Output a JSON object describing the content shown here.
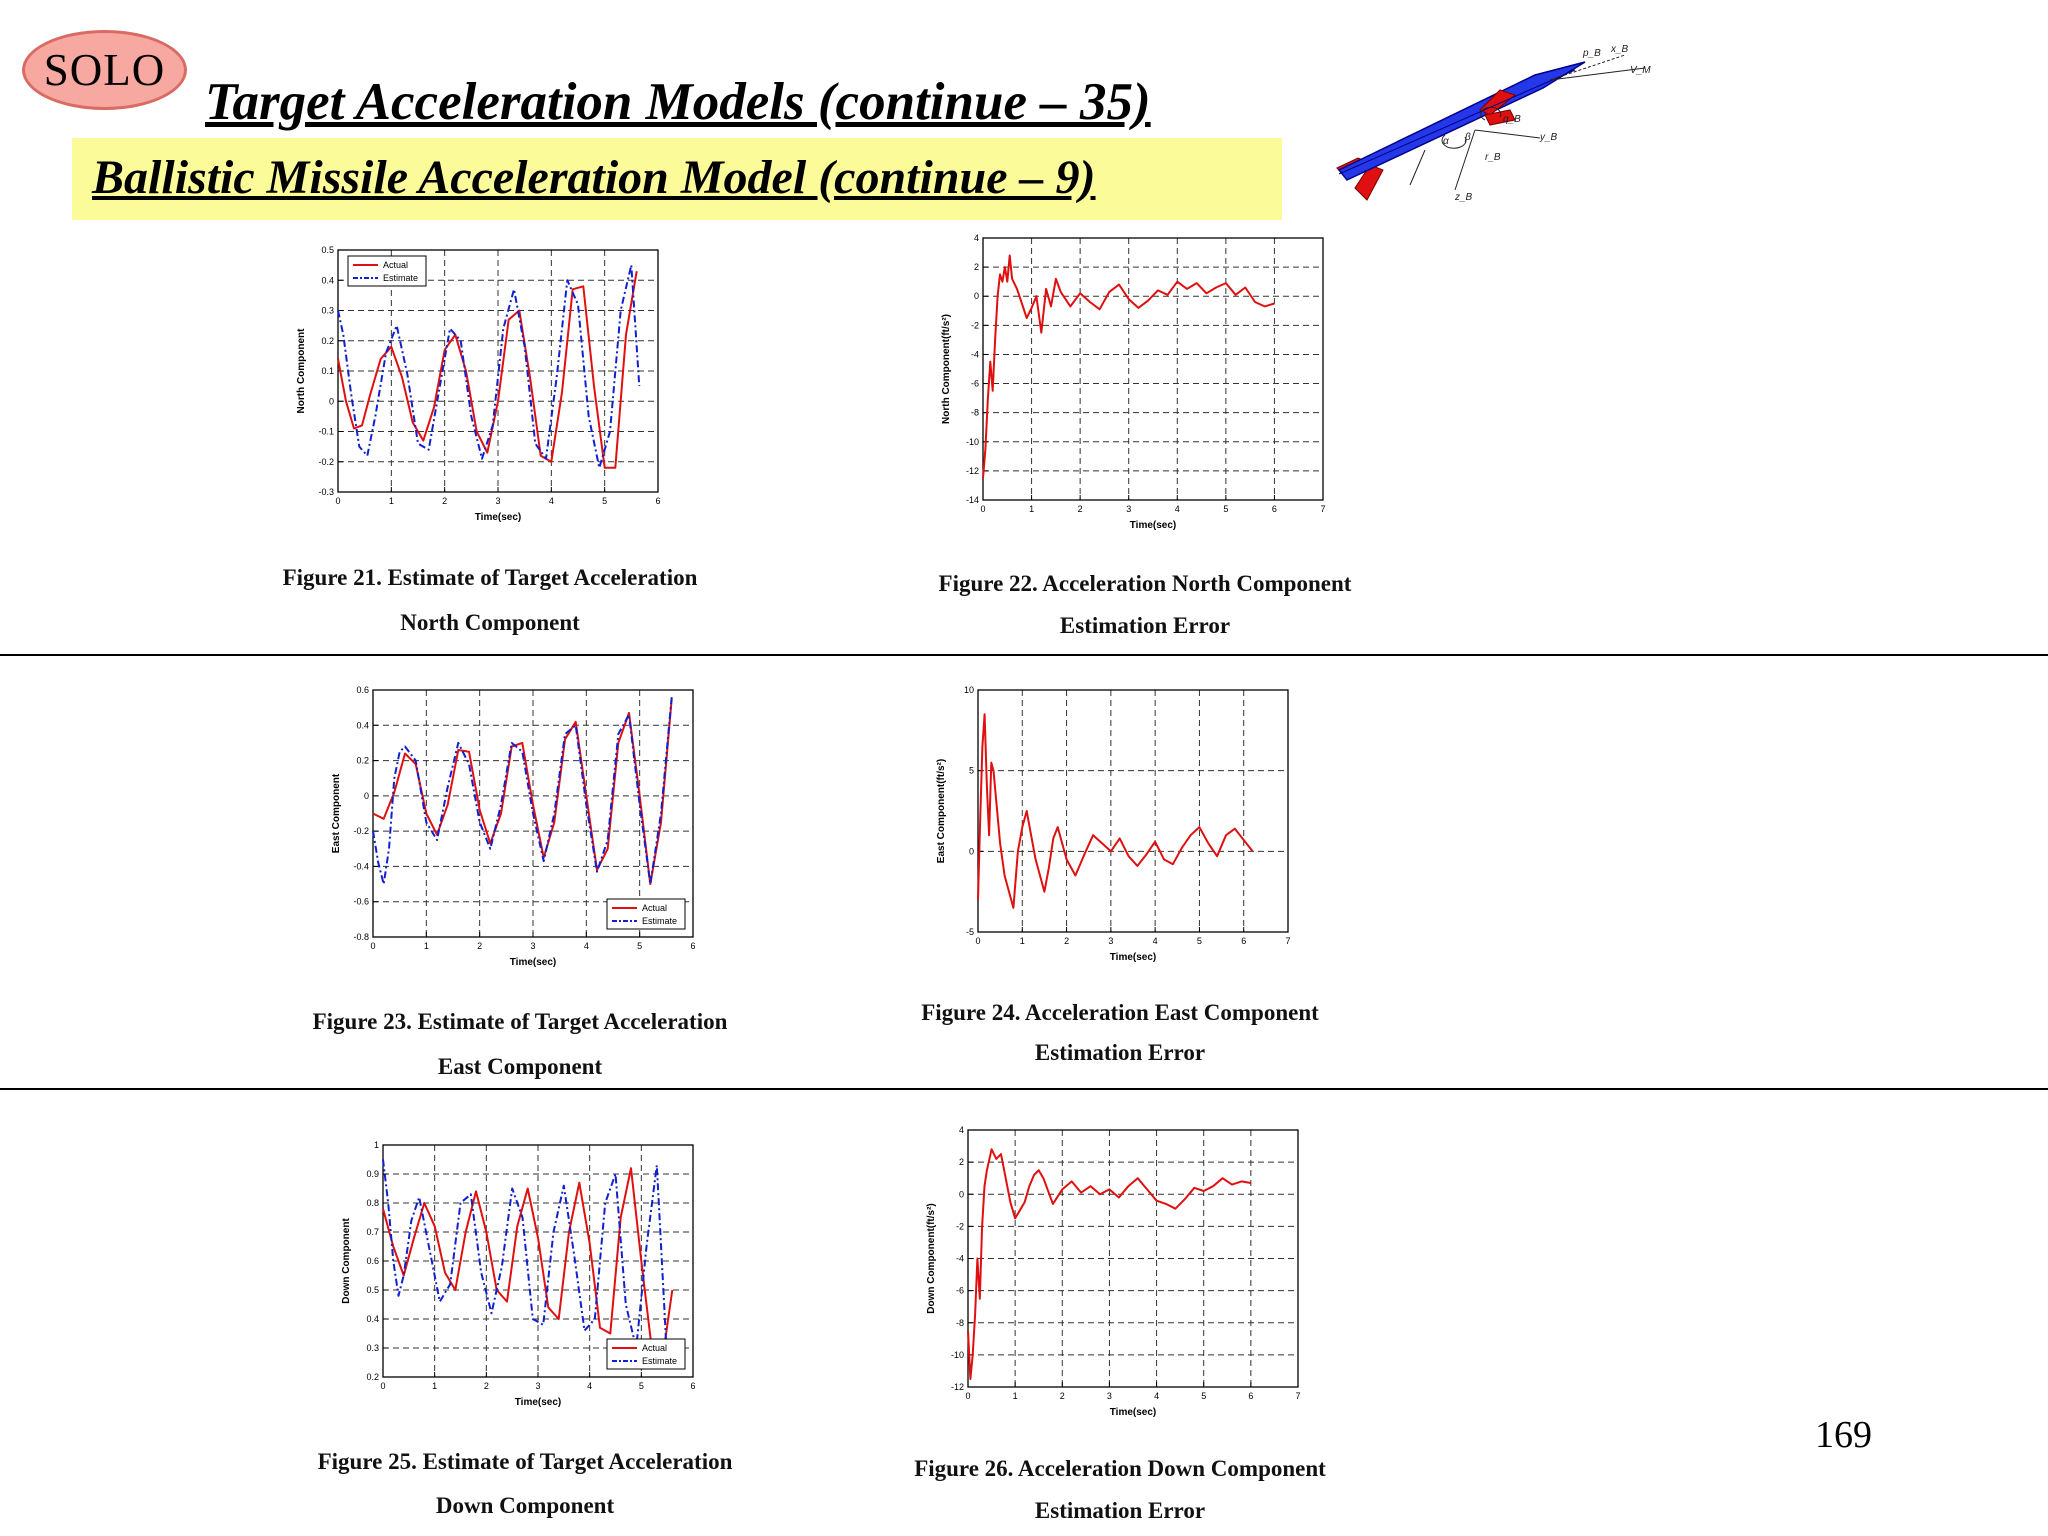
{
  "header": {
    "badge": "SOLO",
    "title": "Target Acceleration Models (continue – 35)",
    "subtitle": "Ballistic Missile Acceleration Model (continue – 9)"
  },
  "missile_labels": [
    "p_B",
    "x_B",
    "V_M",
    "q_B",
    "α",
    "β",
    "y_B",
    "r_B",
    "z_B"
  ],
  "colors": {
    "actual": "#e01010",
    "estimate": "#1020d0",
    "subtitle_bg": "#fbfb9a",
    "badge": "#f7a8a0"
  },
  "page_number": "169",
  "figures": [
    {
      "caption": [
        "Figure 21. Estimate of Target Acceleration",
        "North Component"
      ]
    },
    {
      "caption": [
        "Figure 22. Acceleration North Component",
        "Estimation Error"
      ]
    },
    {
      "caption": [
        "Figure 23. Estimate of Target Acceleration",
        "East Component"
      ]
    },
    {
      "caption": [
        "Figure 24. Acceleration East Component",
        "Estimation Error"
      ]
    },
    {
      "caption": [
        "Figure 25. Estimate of Target Acceleration",
        "Down Component"
      ]
    },
    {
      "caption": [
        "Figure 26. Acceleration Down Component",
        "Estimation Error"
      ]
    }
  ],
  "chart_data": [
    {
      "id": "fig21",
      "type": "line",
      "xlabel": "Time(sec)",
      "ylabel": "North Component",
      "xlim": [
        0,
        6
      ],
      "ylim": [
        -0.3,
        0.5
      ],
      "xticks": [
        0,
        1,
        2,
        3,
        4,
        5,
        6
      ],
      "yticks": [
        -0.3,
        -0.2,
        -0.1,
        0,
        0.1,
        0.2,
        0.3,
        0.4,
        0.5
      ],
      "legend": [
        "Actual",
        "Estimate"
      ],
      "legend_position": "top-left",
      "grid": true,
      "series": [
        {
          "name": "Actual",
          "color": "#e01010",
          "style": "solid",
          "x": [
            0.0,
            0.15,
            0.3,
            0.45,
            0.6,
            0.8,
            1.0,
            1.2,
            1.4,
            1.6,
            1.8,
            2.0,
            2.2,
            2.4,
            2.6,
            2.8,
            3.0,
            3.2,
            3.4,
            3.6,
            3.8,
            4.0,
            4.2,
            4.4,
            4.6,
            4.8,
            5.0,
            5.2,
            5.4,
            5.6
          ],
          "y": [
            0.14,
            0.0,
            -0.09,
            -0.08,
            0.02,
            0.14,
            0.18,
            0.08,
            -0.07,
            -0.13,
            -0.02,
            0.17,
            0.22,
            0.1,
            -0.1,
            -0.17,
            0.0,
            0.27,
            0.3,
            0.08,
            -0.18,
            -0.2,
            0.03,
            0.37,
            0.38,
            0.05,
            -0.22,
            -0.22,
            0.22,
            0.43
          ]
        },
        {
          "name": "Estimate",
          "color": "#1020d0",
          "style": "dashdot",
          "x": [
            0.0,
            0.1,
            0.25,
            0.4,
            0.55,
            0.7,
            0.9,
            1.1,
            1.3,
            1.5,
            1.7,
            1.9,
            2.1,
            2.3,
            2.5,
            2.7,
            2.9,
            3.1,
            3.3,
            3.5,
            3.7,
            3.9,
            4.1,
            4.3,
            4.5,
            4.7,
            4.9,
            5.1,
            5.3,
            5.5,
            5.65
          ],
          "y": [
            0.3,
            0.22,
            0.02,
            -0.15,
            -0.18,
            -0.05,
            0.16,
            0.25,
            0.09,
            -0.14,
            -0.16,
            0.04,
            0.24,
            0.2,
            -0.05,
            -0.19,
            -0.08,
            0.24,
            0.37,
            0.18,
            -0.14,
            -0.19,
            0.08,
            0.4,
            0.32,
            -0.05,
            -0.22,
            -0.1,
            0.3,
            0.45,
            0.05
          ]
        }
      ]
    },
    {
      "id": "fig22",
      "type": "line",
      "xlabel": "Time(sec)",
      "ylabel": "North Component(ft/s²)",
      "xlim": [
        0,
        7
      ],
      "ylim": [
        -14,
        4
      ],
      "xticks": [
        0,
        1,
        2,
        3,
        4,
        5,
        6,
        7
      ],
      "yticks": [
        -14,
        -12,
        -10,
        -8,
        -6,
        -4,
        -2,
        0,
        2,
        4
      ],
      "grid": true,
      "series": [
        {
          "name": "",
          "color": "#e01010",
          "style": "solid",
          "x": [
            0.0,
            0.05,
            0.1,
            0.15,
            0.2,
            0.25,
            0.3,
            0.35,
            0.4,
            0.45,
            0.5,
            0.55,
            0.6,
            0.7,
            0.8,
            0.9,
            1.0,
            1.1,
            1.2,
            1.3,
            1.4,
            1.5,
            1.6,
            1.8,
            2.0,
            2.2,
            2.4,
            2.6,
            2.8,
            3.0,
            3.2,
            3.4,
            3.6,
            3.8,
            4.0,
            4.2,
            4.4,
            4.6,
            4.8,
            5.0,
            5.2,
            5.4,
            5.6,
            5.8,
            6.0
          ],
          "y": [
            -12.5,
            -10.5,
            -7.0,
            -4.5,
            -6.5,
            -3.0,
            0.0,
            1.5,
            1.0,
            2.0,
            1.0,
            2.8,
            1.2,
            0.5,
            -0.5,
            -1.5,
            -0.8,
            0.0,
            -2.5,
            0.5,
            -0.7,
            1.2,
            0.3,
            -0.7,
            0.2,
            -0.4,
            -0.9,
            0.3,
            0.8,
            -0.2,
            -0.8,
            -0.3,
            0.4,
            0.1,
            1.0,
            0.5,
            0.9,
            0.2,
            0.6,
            0.9,
            0.1,
            0.6,
            -0.4,
            -0.7,
            -0.5
          ]
        }
      ]
    },
    {
      "id": "fig23",
      "type": "line",
      "xlabel": "Time(sec)",
      "ylabel": "East Component",
      "xlim": [
        0,
        6
      ],
      "ylim": [
        -0.8,
        0.6
      ],
      "xticks": [
        0,
        1,
        2,
        3,
        4,
        5,
        6
      ],
      "yticks": [
        -0.8,
        -0.6,
        -0.4,
        -0.2,
        0,
        0.2,
        0.4,
        0.6
      ],
      "legend": [
        "Actual",
        "Estimate"
      ],
      "legend_position": "bottom-right",
      "grid": true,
      "series": [
        {
          "name": "Actual",
          "color": "#e01010",
          "style": "solid",
          "x": [
            0.0,
            0.2,
            0.4,
            0.6,
            0.8,
            1.0,
            1.2,
            1.4,
            1.6,
            1.8,
            2.0,
            2.2,
            2.4,
            2.6,
            2.8,
            3.0,
            3.2,
            3.4,
            3.6,
            3.8,
            4.0,
            4.2,
            4.4,
            4.6,
            4.8,
            5.0,
            5.2,
            5.4,
            5.6
          ],
          "y": [
            -0.1,
            -0.13,
            0.02,
            0.24,
            0.18,
            -0.1,
            -0.22,
            -0.05,
            0.26,
            0.25,
            -0.08,
            -0.27,
            -0.1,
            0.28,
            0.3,
            -0.05,
            -0.35,
            -0.15,
            0.32,
            0.42,
            0.0,
            -0.42,
            -0.3,
            0.3,
            0.47,
            0.0,
            -0.5,
            -0.15,
            0.55
          ]
        },
        {
          "name": "Estimate",
          "color": "#1020d0",
          "style": "dashdot",
          "x": [
            0.0,
            0.1,
            0.2,
            0.3,
            0.4,
            0.5,
            0.6,
            0.8,
            1.0,
            1.2,
            1.4,
            1.6,
            1.8,
            2.0,
            2.2,
            2.4,
            2.6,
            2.8,
            3.0,
            3.2,
            3.4,
            3.6,
            3.8,
            4.0,
            4.2,
            4.4,
            4.6,
            4.8,
            5.0,
            5.2,
            5.4,
            5.6
          ],
          "y": [
            -0.2,
            -0.38,
            -0.5,
            -0.3,
            0.1,
            0.25,
            0.28,
            0.2,
            -0.15,
            -0.25,
            0.05,
            0.3,
            0.18,
            -0.15,
            -0.3,
            -0.05,
            0.3,
            0.25,
            -0.1,
            -0.37,
            -0.1,
            0.35,
            0.4,
            -0.05,
            -0.43,
            -0.25,
            0.35,
            0.46,
            -0.05,
            -0.5,
            -0.1,
            0.56
          ]
        }
      ]
    },
    {
      "id": "fig24",
      "type": "line",
      "xlabel": "Time(sec)",
      "ylabel": "East Component(ft/s²)",
      "xlim": [
        0,
        7
      ],
      "ylim": [
        -5,
        10
      ],
      "xticks": [
        0,
        1,
        2,
        3,
        4,
        5,
        6,
        7
      ],
      "yticks": [
        -5,
        0,
        5,
        10
      ],
      "grid": true,
      "series": [
        {
          "name": "",
          "color": "#e01010",
          "style": "solid",
          "x": [
            0.0,
            0.05,
            0.1,
            0.15,
            0.2,
            0.25,
            0.3,
            0.35,
            0.4,
            0.5,
            0.6,
            0.7,
            0.8,
            0.9,
            1.0,
            1.1,
            1.2,
            1.3,
            1.4,
            1.5,
            1.6,
            1.7,
            1.8,
            2.0,
            2.2,
            2.4,
            2.6,
            2.8,
            3.0,
            3.2,
            3.4,
            3.6,
            3.8,
            4.0,
            4.2,
            4.4,
            4.6,
            4.8,
            5.0,
            5.2,
            5.4,
            5.6,
            5.8,
            6.0,
            6.2
          ],
          "y": [
            -3.0,
            2.0,
            6.5,
            8.5,
            4.0,
            1.0,
            5.5,
            5.0,
            3.5,
            0.5,
            -1.5,
            -2.5,
            -3.5,
            0.0,
            1.5,
            2.5,
            1.0,
            -0.5,
            -1.5,
            -2.5,
            -1.0,
            0.8,
            1.5,
            -0.5,
            -1.5,
            -0.2,
            1.0,
            0.5,
            0.0,
            0.8,
            -0.3,
            -0.9,
            -0.2,
            0.6,
            -0.5,
            -0.8,
            0.2,
            1.0,
            1.5,
            0.5,
            -0.3,
            1.0,
            1.4,
            0.7,
            0.0
          ]
        }
      ]
    },
    {
      "id": "fig25",
      "type": "line",
      "xlabel": "Time(sec)",
      "ylabel": "Down Component",
      "xlim": [
        0,
        6
      ],
      "ylim": [
        0.2,
        1.0
      ],
      "xticks": [
        0,
        1,
        2,
        3,
        4,
        5,
        6
      ],
      "yticks": [
        0.2,
        0.3,
        0.4,
        0.5,
        0.6,
        0.7,
        0.8,
        0.9,
        1.0
      ],
      "legend": [
        "Actual",
        "Estimate"
      ],
      "legend_position": "bottom-right",
      "grid": true,
      "series": [
        {
          "name": "Actual",
          "color": "#e01010",
          "style": "solid",
          "x": [
            0.0,
            0.2,
            0.4,
            0.6,
            0.8,
            1.0,
            1.2,
            1.4,
            1.6,
            1.8,
            2.0,
            2.2,
            2.4,
            2.6,
            2.8,
            3.0,
            3.2,
            3.4,
            3.6,
            3.8,
            4.0,
            4.2,
            4.4,
            4.6,
            4.8,
            5.0,
            5.2,
            5.4,
            5.6
          ],
          "y": [
            0.78,
            0.65,
            0.55,
            0.68,
            0.8,
            0.72,
            0.56,
            0.5,
            0.7,
            0.84,
            0.7,
            0.5,
            0.46,
            0.72,
            0.85,
            0.68,
            0.44,
            0.4,
            0.7,
            0.87,
            0.66,
            0.37,
            0.35,
            0.75,
            0.92,
            0.6,
            0.3,
            0.25,
            0.5
          ]
        },
        {
          "name": "Estimate",
          "color": "#1020d0",
          "style": "dashdot",
          "x": [
            0.0,
            0.1,
            0.2,
            0.3,
            0.4,
            0.55,
            0.7,
            0.9,
            1.1,
            1.3,
            1.5,
            1.7,
            1.9,
            2.1,
            2.3,
            2.5,
            2.7,
            2.9,
            3.1,
            3.3,
            3.5,
            3.7,
            3.9,
            4.1,
            4.3,
            4.5,
            4.7,
            4.9,
            5.1,
            5.3,
            5.5
          ],
          "y": [
            0.95,
            0.8,
            0.6,
            0.48,
            0.55,
            0.74,
            0.82,
            0.64,
            0.46,
            0.52,
            0.8,
            0.83,
            0.56,
            0.42,
            0.58,
            0.85,
            0.75,
            0.4,
            0.38,
            0.7,
            0.86,
            0.62,
            0.36,
            0.4,
            0.8,
            0.9,
            0.45,
            0.3,
            0.65,
            0.93,
            0.25
          ]
        }
      ]
    },
    {
      "id": "fig26",
      "type": "line",
      "xlabel": "Time(sec)",
      "ylabel": "Down Component(ft/s²)",
      "xlim": [
        0,
        7
      ],
      "ylim": [
        -12,
        4
      ],
      "xticks": [
        0,
        1,
        2,
        3,
        4,
        5,
        6,
        7
      ],
      "yticks": [
        -12,
        -10,
        -8,
        -6,
        -4,
        -2,
        0,
        2,
        4
      ],
      "grid": true,
      "series": [
        {
          "name": "",
          "color": "#e01010",
          "style": "solid",
          "x": [
            0.0,
            0.05,
            0.1,
            0.15,
            0.2,
            0.25,
            0.3,
            0.35,
            0.4,
            0.5,
            0.6,
            0.7,
            0.8,
            0.9,
            1.0,
            1.1,
            1.2,
            1.3,
            1.4,
            1.5,
            1.6,
            1.8,
            2.0,
            2.2,
            2.4,
            2.6,
            2.8,
            3.0,
            3.2,
            3.4,
            3.6,
            3.8,
            4.0,
            4.2,
            4.4,
            4.6,
            4.8,
            5.0,
            5.2,
            5.4,
            5.6,
            5.8,
            6.0
          ],
          "y": [
            -8.5,
            -11.5,
            -10.0,
            -7.5,
            -4.0,
            -6.5,
            -2.0,
            0.5,
            1.5,
            2.8,
            2.2,
            2.5,
            1.0,
            -0.5,
            -1.5,
            -1.0,
            -0.5,
            0.5,
            1.2,
            1.5,
            1.0,
            -0.6,
            0.3,
            0.8,
            0.1,
            0.5,
            0.0,
            0.3,
            -0.2,
            0.5,
            1.0,
            0.3,
            -0.4,
            -0.6,
            -0.9,
            -0.3,
            0.4,
            0.2,
            0.5,
            1.0,
            0.6,
            0.8,
            0.7
          ]
        }
      ]
    }
  ]
}
